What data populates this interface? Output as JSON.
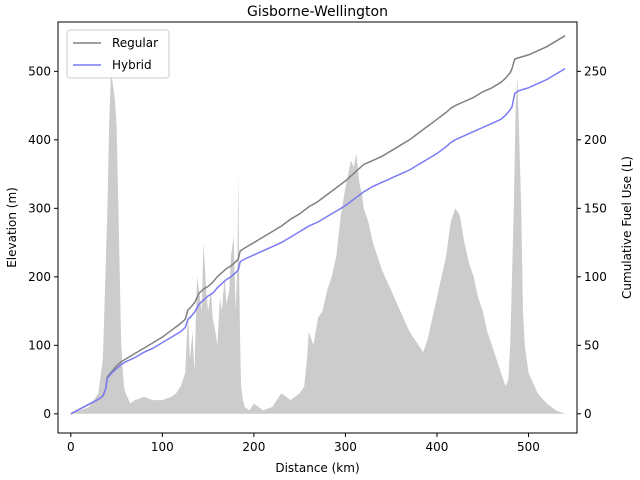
{
  "chart_data": {
    "type": "line",
    "title": "Gisborne-Wellington",
    "xlabel": "Distance (km)",
    "ylabel_left": "Elevation (m)",
    "ylabel_right": "Cumulative Fuel Use (L)",
    "xlim": [
      -14,
      553
    ],
    "ylim_left": [
      -28,
      572
    ],
    "ylim_right": [
      -14,
      286
    ],
    "xticks": [
      0,
      100,
      200,
      300,
      400,
      500
    ],
    "yticks_left": [
      0,
      100,
      200,
      300,
      400,
      500
    ],
    "yticks_right": [
      0,
      50,
      100,
      150,
      200,
      250
    ],
    "legend_position": "upper-left",
    "grid": false,
    "elevation_area": {
      "color": "#cccccc",
      "x": [
        0,
        10,
        20,
        30,
        35,
        40,
        42,
        44,
        46,
        48,
        50,
        52,
        55,
        58,
        60,
        65,
        70,
        80,
        90,
        100,
        110,
        115,
        120,
        125,
        128,
        130,
        133,
        135,
        138,
        140,
        143,
        145,
        148,
        150,
        153,
        155,
        158,
        160,
        163,
        165,
        168,
        170,
        173,
        175,
        178,
        180,
        182,
        183,
        184,
        185,
        186,
        188,
        190,
        195,
        200,
        205,
        210,
        220,
        230,
        240,
        250,
        255,
        258,
        260,
        265,
        270,
        275,
        280,
        285,
        290,
        295,
        300,
        303,
        306,
        309,
        312,
        315,
        318,
        320,
        325,
        330,
        340,
        350,
        360,
        370,
        380,
        385,
        390,
        395,
        400,
        405,
        410,
        415,
        420,
        425,
        430,
        435,
        440,
        445,
        450,
        455,
        460,
        465,
        470,
        475,
        478,
        480,
        482,
        484,
        486,
        488,
        490,
        492,
        494,
        496,
        500,
        510,
        520,
        530,
        540
      ],
      "y": [
        0,
        5,
        10,
        30,
        80,
        300,
        430,
        500,
        480,
        460,
        420,
        300,
        100,
        40,
        30,
        15,
        20,
        25,
        20,
        20,
        25,
        30,
        40,
        60,
        150,
        80,
        120,
        60,
        200,
        180,
        150,
        250,
        180,
        150,
        180,
        140,
        120,
        100,
        170,
        150,
        200,
        160,
        180,
        230,
        260,
        150,
        220,
        350,
        200,
        100,
        40,
        20,
        10,
        5,
        15,
        10,
        5,
        10,
        30,
        20,
        30,
        40,
        80,
        120,
        100,
        140,
        150,
        180,
        200,
        230,
        290,
        330,
        350,
        370,
        360,
        380,
        340,
        320,
        300,
        280,
        250,
        210,
        180,
        150,
        120,
        100,
        90,
        110,
        140,
        170,
        200,
        230,
        280,
        300,
        290,
        250,
        220,
        200,
        170,
        150,
        120,
        100,
        80,
        60,
        40,
        50,
        100,
        200,
        300,
        450,
        490,
        400,
        300,
        150,
        100,
        60,
        30,
        15,
        5,
        0
      ]
    },
    "series": [
      {
        "name": "Regular",
        "color": "#808080",
        "x": [
          0,
          10,
          20,
          30,
          35,
          38,
          40,
          45,
          50,
          55,
          60,
          70,
          80,
          90,
          100,
          110,
          120,
          125,
          128,
          130,
          135,
          140,
          145,
          150,
          155,
          160,
          165,
          170,
          175,
          180,
          183,
          185,
          190,
          200,
          210,
          220,
          230,
          240,
          250,
          260,
          270,
          280,
          290,
          300,
          310,
          320,
          330,
          340,
          350,
          360,
          370,
          380,
          390,
          400,
          410,
          415,
          420,
          430,
          440,
          450,
          460,
          470,
          475,
          480,
          482,
          485,
          490,
          500,
          510,
          520,
          530,
          540
        ],
        "y": [
          0,
          3.5,
          7,
          10.5,
          13,
          18,
          27,
          31,
          35,
          38,
          40,
          44,
          48,
          52,
          56,
          61,
          66,
          69,
          76,
          77,
          81,
          88,
          91,
          93,
          96,
          100,
          103,
          106,
          108,
          111,
          113,
          119,
          121,
          125,
          129,
          133,
          137,
          142,
          146,
          151,
          155,
          160,
          165,
          170,
          176,
          182,
          185,
          188,
          192,
          196,
          200,
          205,
          210,
          215,
          220,
          223,
          225,
          228,
          231,
          235,
          238,
          242,
          245,
          249,
          252,
          259,
          260,
          262,
          265,
          268,
          272,
          276
        ]
      },
      {
        "name": "Hybrid",
        "color": "#7a7af5",
        "x": [
          0,
          10,
          20,
          30,
          35,
          38,
          40,
          45,
          50,
          55,
          60,
          70,
          80,
          90,
          100,
          110,
          120,
          125,
          128,
          130,
          135,
          140,
          145,
          150,
          155,
          160,
          165,
          170,
          175,
          180,
          183,
          185,
          190,
          200,
          210,
          220,
          230,
          240,
          250,
          260,
          270,
          280,
          290,
          300,
          310,
          320,
          330,
          340,
          350,
          360,
          370,
          380,
          390,
          400,
          410,
          415,
          420,
          430,
          440,
          450,
          460,
          470,
          475,
          480,
          482,
          485,
          490,
          500,
          510,
          520,
          530,
          540
        ],
        "y": [
          0,
          3.5,
          7,
          10.5,
          13,
          18,
          26,
          30,
          33,
          36,
          38,
          41,
          45,
          48,
          52,
          56,
          60,
          63,
          69,
          70,
          74,
          80,
          83,
          86,
          88,
          92,
          95,
          98,
          100,
          103,
          105,
          111,
          113,
          116,
          119,
          122,
          125,
          129,
          133,
          137,
          140,
          144,
          148,
          152,
          157,
          162,
          166,
          169,
          172,
          175,
          178,
          182,
          186,
          190,
          195,
          198,
          200,
          203,
          206,
          209,
          212,
          215,
          218,
          222,
          224,
          234,
          236,
          238,
          241,
          244,
          248,
          252
        ]
      }
    ]
  }
}
